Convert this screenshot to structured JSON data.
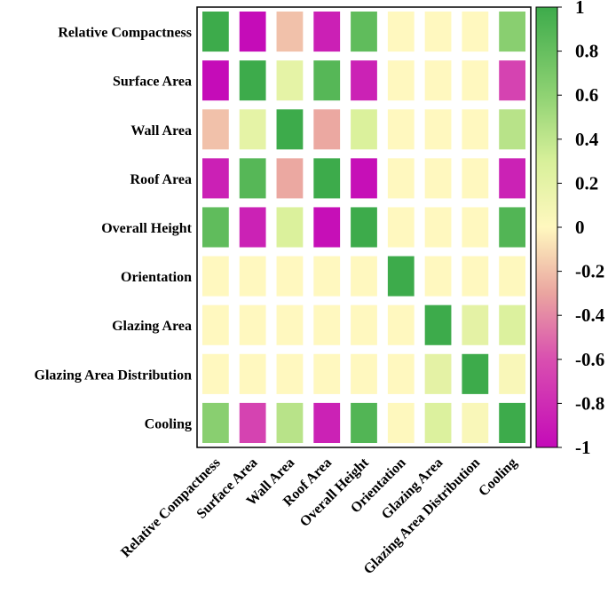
{
  "chart_data": {
    "type": "heatmap",
    "title": "",
    "row_labels": [
      "Relative Compactness",
      "Surface Area",
      "Wall Area",
      "Roof Area",
      "Overall Height",
      "Orientation",
      "Glazing Area",
      "Glazing Area Distribution",
      "Cooling"
    ],
    "col_labels": [
      "Relative Compactness",
      "Surface Area",
      "Wall Area",
      "Roof Area",
      "Overall Height",
      "Orientation",
      "Glazing Area",
      "Glazing Area Distribution",
      "Cooling"
    ],
    "values": [
      [
        1.0,
        -0.99,
        -0.2,
        -0.87,
        0.83,
        0.0,
        0.0,
        0.0,
        0.63
      ],
      [
        -0.99,
        1.0,
        0.2,
        0.88,
        -0.86,
        0.0,
        0.0,
        0.0,
        -0.67
      ],
      [
        -0.2,
        0.2,
        1.0,
        -0.29,
        0.28,
        0.0,
        0.0,
        0.0,
        0.43
      ],
      [
        -0.87,
        0.88,
        -0.29,
        1.0,
        -0.97,
        0.0,
        0.0,
        0.0,
        -0.86
      ],
      [
        0.83,
        -0.86,
        0.28,
        -0.97,
        1.0,
        0.0,
        0.0,
        0.0,
        0.9
      ],
      [
        0.0,
        0.0,
        0.0,
        0.0,
        0.0,
        1.0,
        0.0,
        0.0,
        0.01
      ],
      [
        0.0,
        0.0,
        0.0,
        0.0,
        0.0,
        0.0,
        1.0,
        0.21,
        0.27
      ],
      [
        0.0,
        0.0,
        0.0,
        0.0,
        0.0,
        0.0,
        0.21,
        1.0,
        0.05
      ],
      [
        0.63,
        -0.67,
        0.43,
        -0.86,
        0.9,
        0.01,
        0.27,
        0.05,
        1.0
      ]
    ],
    "colorbar": {
      "range": [
        -1,
        1
      ],
      "ticks": [
        1,
        0.8,
        0.6,
        0.4,
        0.2,
        0,
        -0.2,
        -0.4,
        -0.6,
        -0.8,
        -1
      ],
      "tick_labels": [
        "1",
        "0.8",
        "0.6",
        "0.4",
        "0.2",
        "0",
        "-0.2",
        "-0.4",
        "-0.6",
        "-0.8",
        "-1"
      ],
      "stops": [
        {
          "v": -1,
          "color": "#c40ab8"
        },
        {
          "v": -0.6,
          "color": "#d94fb0"
        },
        {
          "v": -0.3,
          "color": "#eaa5a0"
        },
        {
          "v": 0,
          "color": "#fff8bf"
        },
        {
          "v": 0.3,
          "color": "#d8f09a"
        },
        {
          "v": 0.6,
          "color": "#8fd273"
        },
        {
          "v": 1,
          "color": "#3dab4b"
        }
      ]
    }
  }
}
